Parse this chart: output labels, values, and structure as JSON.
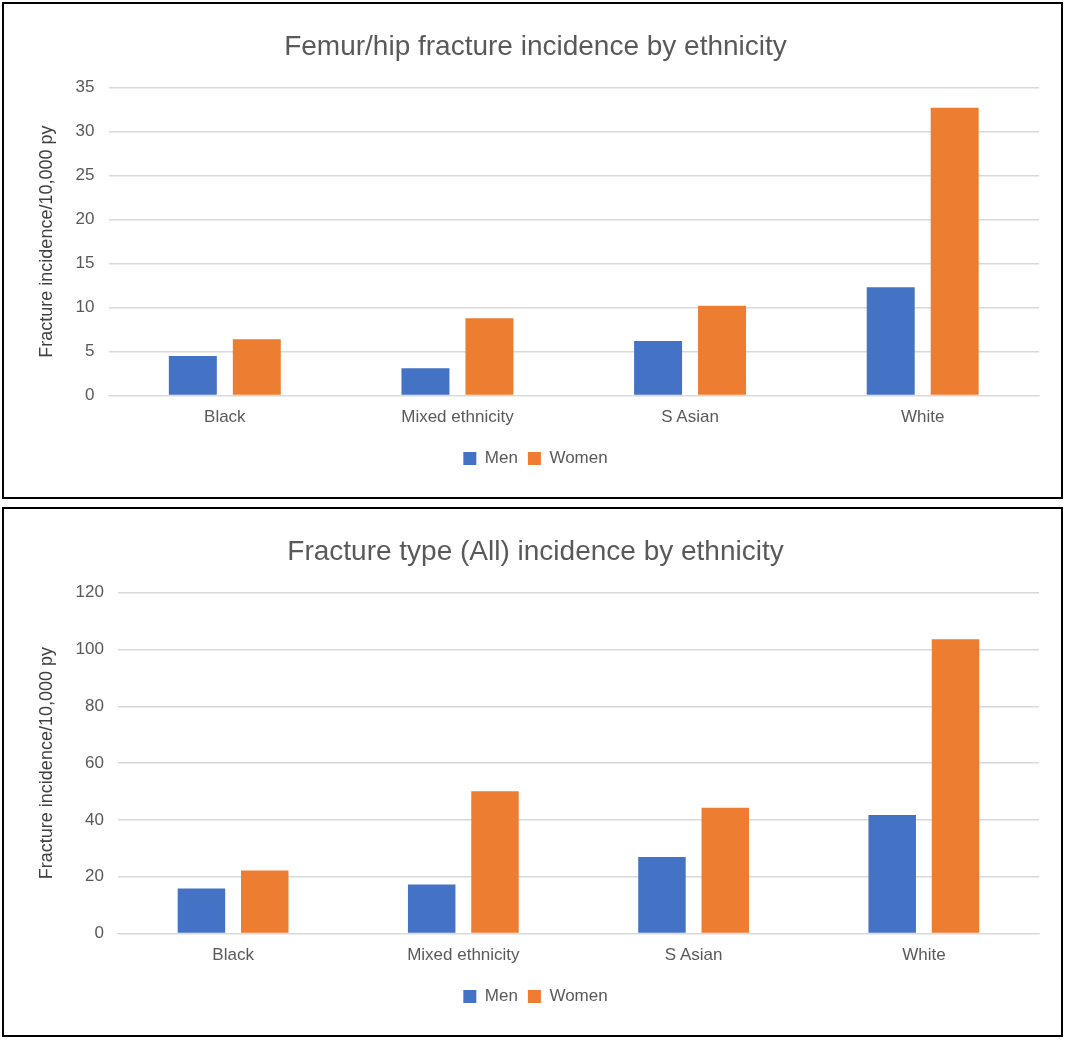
{
  "chart_data": [
    {
      "type": "bar",
      "title": "Femur/hip fracture incidence by ethnicity",
      "ylabel": "Fracture incidence/10,000 py",
      "categories": [
        "Black",
        "Mixed ethnicity",
        "S Asian",
        "White"
      ],
      "series": [
        {
          "name": "Men",
          "color": "#4472c4",
          "values": [
            4.5,
            3.1,
            6.2,
            12.3
          ]
        },
        {
          "name": "Women",
          "color": "#ed7d31",
          "values": [
            6.4,
            8.8,
            10.2,
            32.7
          ]
        }
      ],
      "ylim": [
        0,
        35
      ],
      "yticks": [
        0,
        5,
        10,
        15,
        20,
        25,
        30,
        35
      ],
      "grid": "y",
      "legend": "bottom"
    },
    {
      "type": "bar",
      "title": "Fracture type (All) incidence by ethnicity",
      "ylabel": "Fracture incidence/10,000 py",
      "categories": [
        "Black",
        "Mixed ethnicity",
        "S Asian",
        "White"
      ],
      "series": [
        {
          "name": "Men",
          "color": "#4472c4",
          "values": [
            15.9,
            17.3,
            27,
            41.7
          ]
        },
        {
          "name": "Women",
          "color": "#ed7d31",
          "values": [
            22.2,
            50.1,
            44.3,
            103.6
          ]
        }
      ],
      "ylim": [
        0,
        120
      ],
      "yticks": [
        0,
        20,
        40,
        60,
        80,
        100,
        120
      ],
      "grid": "y",
      "legend": "bottom"
    }
  ]
}
